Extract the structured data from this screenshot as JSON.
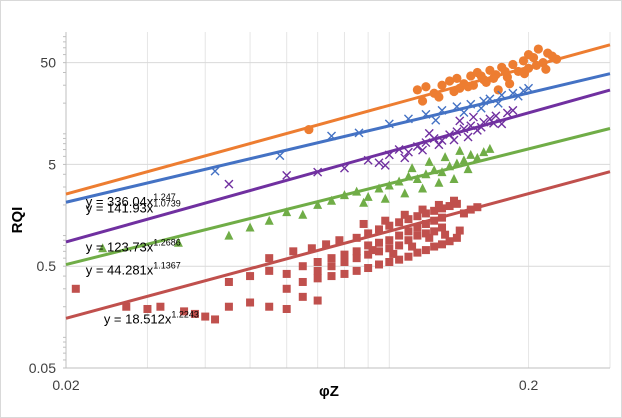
{
  "chart_data": {
    "type": "scatter",
    "title": "",
    "xlabel": "φZ",
    "ylabel": "RQI",
    "xscale": "log",
    "yscale": "log",
    "xlim": [
      0.02,
      0.3
    ],
    "ylim": [
      0.05,
      100
    ],
    "xticks": [
      {
        "value": 0.02,
        "label": "0.02"
      },
      {
        "value": 0.2,
        "label": "0.2"
      }
    ],
    "yticks": [
      {
        "value": 0.05,
        "label": "0.05"
      },
      {
        "value": 0.5,
        "label": "0.5"
      },
      {
        "value": 5,
        "label": "5"
      },
      {
        "value": 50,
        "label": "50"
      }
    ],
    "grid": true,
    "series": [
      {
        "name": "orange",
        "marker": "circle",
        "color": "#ED7D31",
        "trendline": {
          "a": 336.04,
          "b": 1.247,
          "coef_text": "336.04",
          "exp_text": "1.247"
        },
        "points": [
          [
            0.067,
            11
          ],
          [
            0.115,
            27
          ],
          [
            0.12,
            29
          ],
          [
            0.125,
            25
          ],
          [
            0.13,
            30
          ],
          [
            0.135,
            33
          ],
          [
            0.14,
            35
          ],
          [
            0.145,
            31
          ],
          [
            0.15,
            37
          ],
          [
            0.155,
            40
          ],
          [
            0.16,
            34
          ],
          [
            0.165,
            42
          ],
          [
            0.17,
            38
          ],
          [
            0.175,
            45
          ],
          [
            0.18,
            36
          ],
          [
            0.185,
            48
          ],
          [
            0.19,
            41
          ],
          [
            0.195,
            52
          ],
          [
            0.2,
            60
          ],
          [
            0.2,
            44
          ],
          [
            0.205,
            56
          ],
          [
            0.21,
            68
          ],
          [
            0.215,
            50
          ],
          [
            0.22,
            62
          ],
          [
            0.225,
            58
          ],
          [
            0.23,
            54
          ],
          [
            0.118,
            21
          ],
          [
            0.128,
            23
          ],
          [
            0.142,
            28
          ],
          [
            0.152,
            30
          ],
          [
            0.162,
            32
          ],
          [
            0.172,
            27
          ],
          [
            0.182,
            31
          ],
          [
            0.196,
            39
          ],
          [
            0.208,
            47
          ],
          [
            0.218,
            43
          ],
          [
            0.138,
            26
          ],
          [
            0.148,
            29
          ],
          [
            0.158,
            37
          ],
          [
            0.168,
            35
          ],
          [
            0.178,
            41
          ]
        ]
      },
      {
        "name": "blue",
        "marker": "x",
        "color": "#4472C4",
        "trendline": {
          "a": 141.93,
          "b": 1.0739,
          "coef_text": "141.93",
          "exp_text": "1.0739"
        },
        "points": [
          [
            0.042,
            4.3
          ],
          [
            0.058,
            6.1
          ],
          [
            0.075,
            9.5
          ],
          [
            0.086,
            10.2
          ],
          [
            0.1,
            12.5
          ],
          [
            0.11,
            14
          ],
          [
            0.12,
            15.5
          ],
          [
            0.13,
            17
          ],
          [
            0.14,
            18.5
          ],
          [
            0.15,
            19.5
          ],
          [
            0.16,
            21
          ],
          [
            0.165,
            22
          ],
          [
            0.175,
            24
          ],
          [
            0.185,
            25
          ],
          [
            0.195,
            26.5
          ],
          [
            0.2,
            28
          ],
          [
            0.126,
            13.6
          ],
          [
            0.145,
            16.2
          ],
          [
            0.158,
            17.8
          ],
          [
            0.172,
            19.9
          ],
          [
            0.19,
            23.4
          ]
        ]
      },
      {
        "name": "purple",
        "marker": "x",
        "color": "#7030A0",
        "trendline": {
          "a": 123.73,
          "b": 1.2686,
          "coef_text": "123.73",
          "exp_text": "1.2686"
        },
        "points": [
          [
            0.045,
            3.2
          ],
          [
            0.06,
            3.9
          ],
          [
            0.07,
            4.2
          ],
          [
            0.08,
            4.6
          ],
          [
            0.09,
            5.5
          ],
          [
            0.095,
            5.2
          ],
          [
            0.1,
            6.2
          ],
          [
            0.105,
            7
          ],
          [
            0.11,
            6.6
          ],
          [
            0.115,
            7.5
          ],
          [
            0.12,
            8.2
          ],
          [
            0.125,
            9
          ],
          [
            0.13,
            8.6
          ],
          [
            0.135,
            9.8
          ],
          [
            0.14,
            10.5
          ],
          [
            0.145,
            11.2
          ],
          [
            0.15,
            12
          ],
          [
            0.155,
            10.8
          ],
          [
            0.16,
            13
          ],
          [
            0.165,
            14
          ],
          [
            0.17,
            15
          ],
          [
            0.175,
            12.5
          ],
          [
            0.18,
            16
          ],
          [
            0.185,
            17
          ],
          [
            0.118,
            6.9
          ],
          [
            0.128,
            7.8
          ],
          [
            0.138,
            8.7
          ],
          [
            0.148,
            9.3
          ],
          [
            0.158,
            11.6
          ],
          [
            0.168,
            12.7
          ],
          [
            0.108,
            5.8
          ],
          [
            0.098,
            4.9
          ],
          [
            0.122,
            10.1
          ],
          [
            0.142,
            13.4
          ],
          [
            0.152,
            14.6
          ]
        ]
      },
      {
        "name": "green",
        "marker": "triangle",
        "color": "#70AD47",
        "trendline": {
          "a": 44.281,
          "b": 1.1367,
          "coef_text": "44.281",
          "exp_text": "1.1367"
        },
        "points": [
          [
            0.024,
            0.75
          ],
          [
            0.035,
            0.85
          ],
          [
            0.045,
            1.0
          ],
          [
            0.05,
            1.2
          ],
          [
            0.055,
            1.4
          ],
          [
            0.06,
            1.7
          ],
          [
            0.065,
            1.6
          ],
          [
            0.07,
            2.0
          ],
          [
            0.075,
            2.2
          ],
          [
            0.08,
            2.5
          ],
          [
            0.085,
            2.7
          ],
          [
            0.09,
            2.4
          ],
          [
            0.095,
            2.9
          ],
          [
            0.1,
            3.1
          ],
          [
            0.105,
            3.4
          ],
          [
            0.11,
            3.8
          ],
          [
            0.115,
            3.6
          ],
          [
            0.12,
            4.0
          ],
          [
            0.125,
            4.4
          ],
          [
            0.13,
            4.2
          ],
          [
            0.135,
            4.8
          ],
          [
            0.14,
            5.1
          ],
          [
            0.145,
            5.5
          ],
          [
            0.15,
            6.2
          ],
          [
            0.155,
            5.8
          ],
          [
            0.16,
            6.6
          ],
          [
            0.165,
            7.1
          ],
          [
            0.118,
            2.9
          ],
          [
            0.128,
            3.3
          ],
          [
            0.138,
            3.6
          ],
          [
            0.148,
            4.5
          ],
          [
            0.088,
            2.1
          ],
          [
            0.098,
            2.3
          ],
          [
            0.108,
            2.6
          ],
          [
            0.112,
            4.6
          ],
          [
            0.122,
            5.3
          ],
          [
            0.132,
            5.9
          ],
          [
            0.142,
            6.8
          ]
        ]
      },
      {
        "name": "red",
        "marker": "square",
        "color": "#C0504D",
        "trendline": {
          "a": 18.512,
          "b": 1.2243,
          "coef_text": "18.512",
          "exp_text": "1.2243"
        },
        "points": [
          [
            0.021,
            0.3
          ],
          [
            0.027,
            0.2
          ],
          [
            0.03,
            0.19
          ],
          [
            0.032,
            0.2
          ],
          [
            0.036,
            0.18
          ],
          [
            0.038,
            0.17
          ],
          [
            0.04,
            0.16
          ],
          [
            0.042,
            0.15
          ],
          [
            0.045,
            0.2
          ],
          [
            0.05,
            0.22
          ],
          [
            0.055,
            0.2
          ],
          [
            0.06,
            0.19
          ],
          [
            0.065,
            0.25
          ],
          [
            0.07,
            0.23
          ],
          [
            0.045,
            0.35
          ],
          [
            0.05,
            0.4
          ],
          [
            0.055,
            0.45
          ],
          [
            0.06,
            0.42
          ],
          [
            0.065,
            0.5
          ],
          [
            0.07,
            0.55
          ],
          [
            0.075,
            0.6
          ],
          [
            0.08,
            0.65
          ],
          [
            0.085,
            0.7
          ],
          [
            0.09,
            0.8
          ],
          [
            0.095,
            0.85
          ],
          [
            0.1,
            0.9
          ],
          [
            0.105,
            1.0
          ],
          [
            0.11,
            1.1
          ],
          [
            0.115,
            1.2
          ],
          [
            0.12,
            1.3
          ],
          [
            0.125,
            1.4
          ],
          [
            0.13,
            1.5
          ],
          [
            0.07,
            0.45
          ],
          [
            0.075,
            0.5
          ],
          [
            0.08,
            0.55
          ],
          [
            0.085,
            0.6
          ],
          [
            0.09,
            0.65
          ],
          [
            0.095,
            0.7
          ],
          [
            0.1,
            0.75
          ],
          [
            0.105,
            0.8
          ],
          [
            0.11,
            0.9
          ],
          [
            0.115,
            1.0
          ],
          [
            0.12,
            1.05
          ],
          [
            0.125,
            1.1
          ],
          [
            0.13,
            1.2
          ],
          [
            0.085,
            0.95
          ],
          [
            0.09,
            1.05
          ],
          [
            0.095,
            1.15
          ],
          [
            0.1,
            1.25
          ],
          [
            0.105,
            1.35
          ],
          [
            0.11,
            1.45
          ],
          [
            0.115,
            1.55
          ],
          [
            0.12,
            1.65
          ],
          [
            0.125,
            1.75
          ],
          [
            0.13,
            1.85
          ],
          [
            0.135,
            1.95
          ],
          [
            0.14,
            2.05
          ],
          [
            0.145,
            1.65
          ],
          [
            0.15,
            1.8
          ],
          [
            0.155,
            1.9
          ],
          [
            0.06,
            0.3
          ],
          [
            0.065,
            0.35
          ],
          [
            0.07,
            0.38
          ],
          [
            0.075,
            0.4
          ],
          [
            0.08,
            0.42
          ],
          [
            0.085,
            0.45
          ],
          [
            0.09,
            0.48
          ],
          [
            0.095,
            0.52
          ],
          [
            0.1,
            0.55
          ],
          [
            0.105,
            0.58
          ],
          [
            0.11,
            0.62
          ],
          [
            0.115,
            0.68
          ],
          [
            0.12,
            0.72
          ],
          [
            0.125,
            0.78
          ],
          [
            0.13,
            0.82
          ],
          [
            0.135,
            0.88
          ],
          [
            0.14,
            0.95
          ],
          [
            0.088,
            1.3
          ],
          [
            0.098,
            1.4
          ],
          [
            0.108,
            1.6
          ],
          [
            0.118,
            1.8
          ],
          [
            0.128,
            2.0
          ],
          [
            0.138,
            2.2
          ],
          [
            0.092,
            0.72
          ],
          [
            0.102,
            0.66
          ],
          [
            0.112,
            0.78
          ],
          [
            0.122,
            0.95
          ],
          [
            0.132,
            1.02
          ],
          [
            0.142,
            1.12
          ],
          [
            0.055,
            0.6
          ],
          [
            0.062,
            0.7
          ],
          [
            0.068,
            0.75
          ],
          [
            0.073,
            0.82
          ],
          [
            0.078,
            0.9
          ]
        ]
      }
    ]
  }
}
